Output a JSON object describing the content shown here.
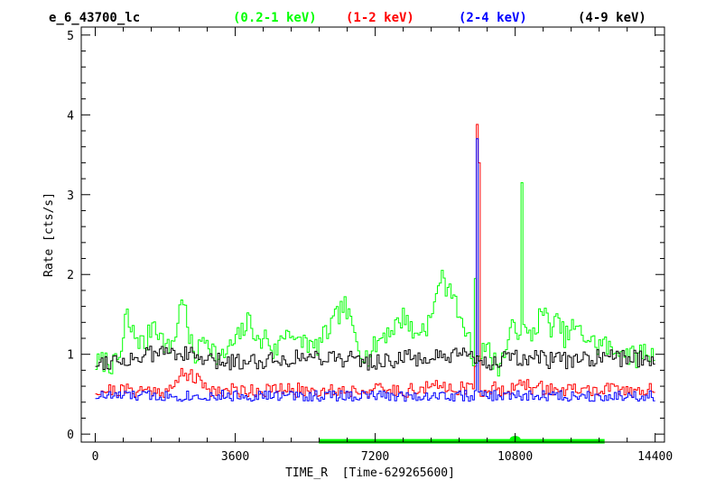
{
  "chart_data": {
    "type": "line",
    "title": "e_6_43700_lc",
    "xlabel": "TIME_R  [Time-629265600]",
    "ylabel": "Rate [cts/s]",
    "xlim": [
      -360,
      14640
    ],
    "ylim": [
      -0.1,
      5.1
    ],
    "xticks": [
      0,
      3600,
      7200,
      10800,
      14400
    ],
    "yticks": [
      0,
      1,
      2,
      3,
      4,
      5
    ],
    "step": "histogram",
    "bin_width_s": 50,
    "series": [
      {
        "name": "(0.2-1 keV)",
        "color": "#00ff00",
        "anchors": [
          [
            0,
            0.88
          ],
          [
            300,
            0.92
          ],
          [
            500,
            0.85
          ],
          [
            700,
            1.05
          ],
          [
            800,
            1.55
          ],
          [
            900,
            1.3
          ],
          [
            1100,
            1.2
          ],
          [
            1300,
            1.1
          ],
          [
            1500,
            1.45
          ],
          [
            1700,
            1.2
          ],
          [
            1900,
            1.05
          ],
          [
            2100,
            1.3
          ],
          [
            2250,
            1.82
          ],
          [
            2400,
            1.2
          ],
          [
            2600,
            0.95
          ],
          [
            2800,
            1.25
          ],
          [
            3000,
            1.1
          ],
          [
            3200,
            0.9
          ],
          [
            3400,
            1.05
          ],
          [
            3600,
            1.15
          ],
          [
            3800,
            1.3
          ],
          [
            4000,
            1.45
          ],
          [
            4200,
            1.1
          ],
          [
            4400,
            1.25
          ],
          [
            4600,
            1.0
          ],
          [
            4800,
            1.2
          ],
          [
            5000,
            1.35
          ],
          [
            5200,
            1.1
          ],
          [
            5400,
            1.2
          ],
          [
            5600,
            1.05
          ],
          [
            5800,
            1.15
          ],
          [
            6000,
            1.3
          ],
          [
            6200,
            1.45
          ],
          [
            6400,
            1.62
          ],
          [
            6600,
            1.35
          ],
          [
            6800,
            1.1
          ],
          [
            7000,
            0.95
          ],
          [
            7200,
            1.1
          ],
          [
            7400,
            1.25
          ],
          [
            7600,
            1.3
          ],
          [
            7800,
            1.4
          ],
          [
            8000,
            1.5
          ],
          [
            8200,
            1.2
          ],
          [
            8300,
            1.3
          ],
          [
            8500,
            1.35
          ],
          [
            8700,
            1.5
          ],
          [
            8850,
            2.0
          ],
          [
            9000,
            1.85
          ],
          [
            9100,
            1.9
          ],
          [
            9200,
            1.8
          ],
          [
            9300,
            1.55
          ],
          [
            9450,
            1.15
          ],
          [
            9550,
            1.35
          ],
          [
            9700,
            0.95
          ],
          [
            9850,
            1.0
          ],
          [
            10000,
            1.15
          ],
          [
            10200,
            0.95
          ],
          [
            10400,
            0.85
          ],
          [
            10550,
            1.05
          ],
          [
            10650,
            1.2
          ],
          [
            10800,
            1.4
          ],
          [
            10900,
            1.3
          ],
          [
            11000,
            1.4
          ],
          [
            11100,
            1.2
          ],
          [
            11300,
            1.3
          ],
          [
            11500,
            1.55
          ],
          [
            11700,
            1.35
          ],
          [
            11900,
            1.4
          ],
          [
            12100,
            1.2
          ],
          [
            12300,
            1.35
          ],
          [
            12500,
            1.25
          ],
          [
            12700,
            1.2
          ],
          [
            12900,
            1.1
          ],
          [
            13100,
            1.15
          ],
          [
            13300,
            1.0
          ],
          [
            13500,
            1.1
          ],
          [
            13700,
            1.0
          ],
          [
            13900,
            0.95
          ],
          [
            14100,
            1.05
          ],
          [
            14300,
            1.0
          ],
          [
            14400,
            0.95
          ]
        ],
        "spikes": [
          [
            10950,
            3.15
          ],
          [
            9750,
            1.95
          ],
          [
            9400,
            1.45
          ]
        ],
        "seed": 7,
        "jitter": 0.14
      },
      {
        "name": "(1-2 keV)",
        "color": "#ff0000",
        "anchors": [
          [
            0,
            0.55
          ],
          [
            1000,
            0.55
          ],
          [
            2000,
            0.55
          ],
          [
            2250,
            0.8
          ],
          [
            3000,
            0.55
          ],
          [
            4000,
            0.55
          ],
          [
            5000,
            0.55
          ],
          [
            6000,
            0.55
          ],
          [
            7000,
            0.55
          ],
          [
            8000,
            0.55
          ],
          [
            9000,
            0.6
          ],
          [
            10000,
            0.55
          ],
          [
            11000,
            0.6
          ],
          [
            12000,
            0.55
          ],
          [
            13000,
            0.55
          ],
          [
            14400,
            0.55
          ]
        ],
        "spikes": [
          [
            9800,
            3.88
          ],
          [
            9850,
            3.4
          ],
          [
            9750,
            0.85
          ]
        ],
        "seed": 21,
        "jitter": 0.09
      },
      {
        "name": "(2-4 keV)",
        "color": "#0000ff",
        "anchors": [
          [
            0,
            0.48
          ],
          [
            3600,
            0.48
          ],
          [
            7200,
            0.48
          ],
          [
            10800,
            0.48
          ],
          [
            14400,
            0.48
          ]
        ],
        "spikes": [
          [
            9800,
            3.7
          ]
        ],
        "seed": 33,
        "jitter": 0.07
      },
      {
        "name": "(4-9 keV)",
        "color": "#000000",
        "anchors": [
          [
            0,
            0.9
          ],
          [
            1000,
            0.95
          ],
          [
            2000,
            1.05
          ],
          [
            3000,
            0.9
          ],
          [
            4000,
            0.92
          ],
          [
            5000,
            0.95
          ],
          [
            6000,
            0.98
          ],
          [
            7000,
            0.9
          ],
          [
            8000,
            0.95
          ],
          [
            9000,
            0.95
          ],
          [
            9500,
            0.98
          ],
          [
            10000,
            0.9
          ],
          [
            11000,
            0.95
          ],
          [
            12000,
            0.92
          ],
          [
            13000,
            0.95
          ],
          [
            14400,
            0.95
          ]
        ],
        "spikes": [
          [
            9800,
            0.98
          ]
        ],
        "seed": 55,
        "jitter": 0.11
      }
    ],
    "gti": {
      "color": "#00ff00",
      "y": -0.09,
      "x_start": 5750,
      "x_end": 13100,
      "bump_x": 10800
    },
    "legend_position": "top"
  }
}
